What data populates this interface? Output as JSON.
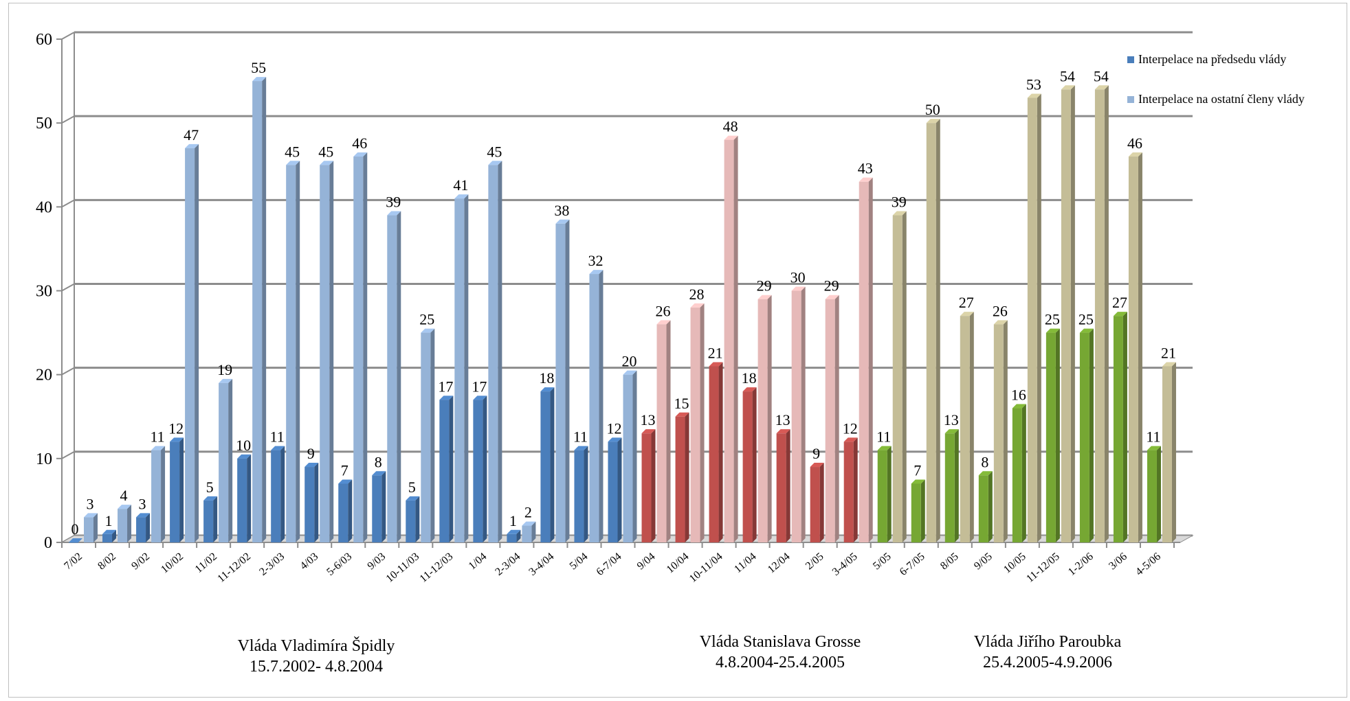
{
  "chart_data": {
    "type": "bar",
    "title": "",
    "xlabel": "",
    "ylabel": "",
    "ylim": [
      0,
      60
    ],
    "y_ticks": [
      0,
      10,
      20,
      30,
      40,
      50,
      60
    ],
    "grid": true,
    "legend_position": "top-right",
    "categories": [
      "7/02",
      "8/02",
      "9/02",
      "10/02",
      "11/02",
      "11-12/02",
      "2-3/03",
      "4/03",
      "5-6/03",
      "9/03",
      "10-11/03",
      "11-12/03",
      "1/04",
      "2-3/04",
      "3-4/04",
      "5/04",
      "6-7/04",
      "9/04",
      "10/04",
      "10-11/04",
      "11/04",
      "12/04",
      "2/05",
      "3-4/05",
      "5/05",
      "6-7/05",
      "8/05",
      "9/05",
      "10/05",
      "11-12/05",
      "1-2/06",
      "3/06",
      "4-5/06"
    ],
    "series": [
      {
        "name": "Interpelace na předsedu vlády",
        "values": [
          0,
          1,
          3,
          12,
          5,
          10,
          11,
          9,
          7,
          8,
          5,
          17,
          17,
          1,
          18,
          11,
          12,
          13,
          15,
          21,
          18,
          13,
          9,
          12,
          11,
          7,
          13,
          8,
          16,
          25,
          25,
          27,
          11
        ]
      },
      {
        "name": "Interpelace na ostatní členy vlády",
        "values": [
          3,
          4,
          11,
          47,
          19,
          55,
          45,
          45,
          46,
          39,
          25,
          41,
          45,
          2,
          38,
          32,
          20,
          26,
          28,
          48,
          29,
          30,
          29,
          43,
          39,
          50,
          27,
          26,
          53,
          54,
          54,
          46,
          21
        ]
      }
    ],
    "groups": [
      {
        "label_line1": "Vláda Vladimíra Špidly",
        "label_line2": "15.7.2002- 4.8.2004",
        "start": 0,
        "end": 16,
        "color_main": "#4a7ebb",
        "color_other": "#95b3d7"
      },
      {
        "label_line1": "Vláda Stanislava Grosse",
        "label_line2": "4.8.2004-25.4.2005",
        "start": 17,
        "end": 23,
        "color_main": "#c0504d",
        "color_other": "#e6b9b8"
      },
      {
        "label_line1": "Vláda Jiřího Paroubka",
        "label_line2": "25.4.2005-4.9.2006",
        "start": 24,
        "end": 32,
        "color_main": "#76a733",
        "color_other": "#c4bd97"
      }
    ],
    "legend_colors": [
      "#4a7ebb",
      "#95b3d7"
    ]
  }
}
